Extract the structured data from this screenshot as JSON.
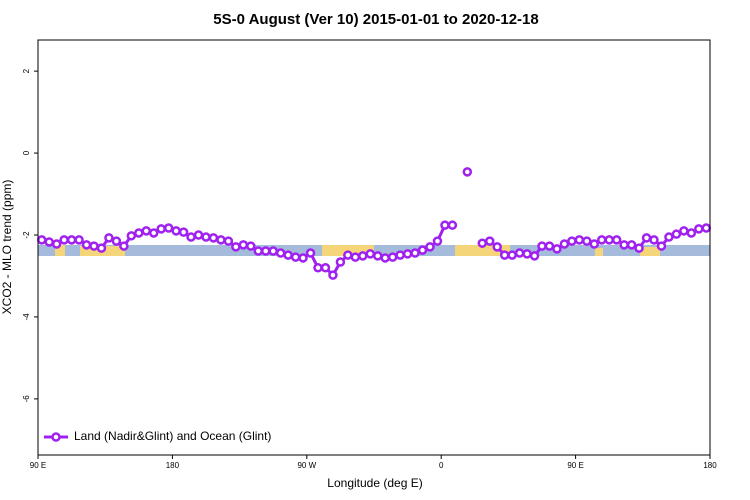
{
  "chart_data": {
    "type": "line",
    "title": "5S-0 August (Ver 10)   2015-01-01 to 2020-12-18",
    "xlabel": "Longitude (deg E)",
    "ylabel": "XCO2 - MLO trend (ppm)",
    "xlim": [
      90,
      540
    ],
    "ylim": [
      -7.37,
      2.76
    ],
    "xticks": [
      {
        "value": 90,
        "label": "90 E"
      },
      180,
      {
        "value": 270,
        "label": "90 W"
      },
      {
        "value": 360,
        "label": "0"
      },
      {
        "value": 450,
        "label": "90 E"
      },
      {
        "value": 540,
        "label": "180"
      }
    ],
    "yticks": [
      2,
      0,
      -2,
      -4,
      -6
    ],
    "legend": "bottom-left",
    "x": [
      92.5,
      97.5,
      102.5,
      107.5,
      112.5,
      117.5,
      122.5,
      127.5,
      132.5,
      137.5,
      142.5,
      147.5,
      152.5,
      157.5,
      162.5,
      167.5,
      172.5,
      177.5,
      182.5,
      187.5,
      192.5,
      197.5,
      202.5,
      207.5,
      212.5,
      217.5,
      222.5,
      227.5,
      232.5,
      237.5,
      242.5,
      247.5,
      252.5,
      257.5,
      262.5,
      267.5,
      272.5,
      277.5,
      282.5,
      287.5,
      292.5,
      297.5,
      302.5,
      307.5,
      312.5,
      317.5,
      322.5,
      327.5,
      332.5,
      337.5,
      342.5,
      347.5,
      352.5,
      357.5,
      362.5,
      367.5,
      372.5,
      377.5,
      382.5,
      387.5,
      392.5,
      397.5,
      402.5,
      407.5,
      412.5,
      417.5,
      422.5,
      427.5,
      432.5,
      437.5,
      442.5,
      447.5,
      452.5,
      457.5,
      462.5,
      467.5,
      472.5,
      477.5,
      482.5,
      487.5,
      492.5,
      497.5,
      502.5,
      507.5,
      512.5,
      517.5,
      522.5,
      527.5,
      532.5,
      537.5
    ],
    "series": [
      {
        "name": "Land (Nadir&Glint) and Ocean (Glint)",
        "color": "#a020f0",
        "values": [
          -2.12,
          -2.17,
          -2.22,
          -2.12,
          -2.12,
          -2.12,
          -2.24,
          -2.27,
          -2.32,
          -2.07,
          -2.15,
          -2.27,
          -2.02,
          -1.95,
          -1.9,
          -1.95,
          -1.85,
          -1.83,
          -1.9,
          -1.93,
          -2.05,
          -2.0,
          -2.05,
          -2.07,
          -2.12,
          -2.15,
          -2.29,
          -2.24,
          -2.27,
          -2.39,
          -2.39,
          -2.39,
          -2.44,
          -2.49,
          -2.54,
          -2.56,
          -2.44,
          -2.8,
          -2.8,
          -2.98,
          -2.66,
          -2.49,
          -2.54,
          -2.51,
          -2.46,
          -2.51,
          -2.56,
          -2.54,
          -2.49,
          -2.46,
          -2.44,
          -2.37,
          -2.29,
          -2.15,
          -1.76,
          -1.76,
          null,
          -0.46,
          null,
          -2.2,
          -2.15,
          -2.29,
          -2.49,
          -2.49,
          -2.44,
          -2.46,
          -2.51,
          -2.27,
          -2.27,
          -2.34,
          -2.22,
          -2.15,
          -2.12,
          -2.15,
          -2.22,
          -2.12,
          -2.12,
          -2.12,
          -2.24,
          -2.24,
          -2.32,
          -2.07,
          -2.12,
          -2.27,
          -2.05,
          -1.98,
          -1.9,
          -1.95,
          -1.85,
          -1.83
        ]
      }
    ]
  }
}
